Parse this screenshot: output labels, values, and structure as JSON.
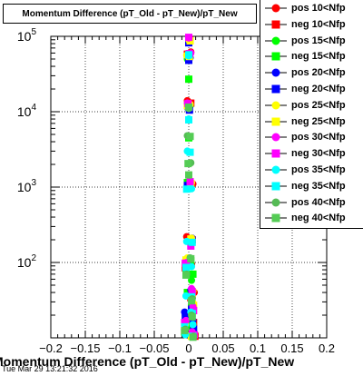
{
  "title": "Momentum Difference (pT_Old - pT_New)/pT_New",
  "timestamp": "Tue Mar 29 13:21:32 2016",
  "chart_data": {
    "type": "scatter",
    "title": "Momentum Difference (pT_Old - pT_New)/pT_New",
    "xlabel": "Momentum Difference (pT_Old - pT_New)/pT_New",
    "ylabel": "",
    "xlim": [
      -0.2,
      0.2
    ],
    "ylim": [
      10,
      100000
    ],
    "yscale": "log",
    "grid": true,
    "legend_position": "top-right",
    "x_ticks": [
      "−0.2",
      "−0.15",
      "−0.1",
      "−0.05",
      "0",
      "0.05",
      "0.1",
      "0.15",
      "0.2"
    ],
    "x_tick_values": [
      -0.2,
      -0.15,
      -0.1,
      -0.05,
      0,
      0.05,
      0.1,
      0.15,
      0.2
    ],
    "y_ticks": [
      {
        "value": 100,
        "base": "10",
        "exp": "2"
      },
      {
        "value": 1000,
        "base": "10",
        "exp": "3"
      },
      {
        "value": 10000,
        "base": "10",
        "exp": "4"
      },
      {
        "value": 100000,
        "base": "10",
        "exp": "5"
      }
    ],
    "series": [
      {
        "name": "pos 10<Nfp",
        "color": "#ff0000",
        "marker": "circle",
        "points": [
          [
            0.0,
            95000
          ],
          [
            0.003,
            62000
          ],
          [
            -0.002,
            14000
          ],
          [
            0.006,
            1100
          ],
          [
            -0.003,
            220
          ],
          [
            0.004,
            95
          ],
          [
            0.008,
            40
          ],
          [
            -0.004,
            18
          ],
          [
            0.006,
            13
          ],
          [
            0.009,
            11
          ]
        ]
      },
      {
        "name": "neg 10<Nfp",
        "color": "#ff0000",
        "marker": "square",
        "points": [
          [
            0.001,
            90000
          ],
          [
            -0.002,
            58000
          ],
          [
            0.003,
            13000
          ],
          [
            -0.001,
            1000
          ],
          [
            0.005,
            200
          ],
          [
            -0.005,
            85
          ],
          [
            0.003,
            34
          ],
          [
            0.007,
            16
          ],
          [
            -0.006,
            12
          ],
          [
            0.009,
            10.5
          ]
        ]
      },
      {
        "name": "pos 15<Nfp",
        "color": "#00ff00",
        "marker": "circle",
        "points": [
          [
            0.0,
            88000
          ],
          [
            -0.002,
            50000
          ],
          [
            0.002,
            12000
          ],
          [
            0.002,
            1200
          ],
          [
            -0.003,
            110
          ],
          [
            -0.004,
            78
          ],
          [
            0.004,
            58
          ],
          [
            0.005,
            30
          ],
          [
            -0.005,
            20
          ],
          [
            0.003,
            14
          ]
        ]
      },
      {
        "name": "neg 15<Nfp",
        "color": "#00ff00",
        "marker": "square",
        "points": [
          [
            0.0,
            85000
          ],
          [
            0.0,
            27000
          ],
          [
            0.0,
            4500
          ],
          [
            -0.002,
            1150
          ],
          [
            0.003,
            105
          ],
          [
            0.006,
            70
          ],
          [
            -0.002,
            40
          ],
          [
            0.004,
            25
          ],
          [
            0.005,
            16
          ],
          [
            -0.006,
            12
          ]
        ]
      },
      {
        "name": "pos 20<Nfp",
        "color": "#0000ff",
        "marker": "circle",
        "points": [
          [
            0.0,
            86000
          ],
          [
            0.002,
            52000
          ],
          [
            -0.001,
            11000
          ],
          [
            0.003,
            1100
          ],
          [
            0.005,
            210
          ],
          [
            -0.004,
            96
          ],
          [
            0.003,
            43
          ],
          [
            0.004,
            32
          ],
          [
            -0.006,
            22
          ],
          [
            0.006,
            17
          ]
        ]
      },
      {
        "name": "neg 20<Nfp",
        "color": "#0000ff",
        "marker": "square",
        "points": [
          [
            0.0,
            82000
          ],
          [
            0.0,
            48000
          ],
          [
            0.001,
            10500
          ],
          [
            -0.002,
            1050
          ],
          [
            0.004,
            190
          ],
          [
            -0.003,
            92
          ],
          [
            0.005,
            37
          ],
          [
            0.004,
            24
          ],
          [
            -0.005,
            19
          ],
          [
            0.007,
            13
          ]
        ]
      },
      {
        "name": "pos 25<Nfp",
        "color": "#ffff00",
        "marker": "circle",
        "points": [
          [
            0.0,
            90000
          ],
          [
            -0.003,
            56000
          ],
          [
            0.002,
            12500
          ],
          [
            0.004,
            1150
          ],
          [
            0.004,
            210
          ],
          [
            -0.002,
            115
          ],
          [
            0.006,
            42
          ],
          [
            0.006,
            29
          ],
          [
            -0.005,
            15
          ],
          [
            0.003,
            11
          ]
        ]
      },
      {
        "name": "neg 25<Nfp",
        "color": "#ffff00",
        "marker": "square",
        "points": [
          [
            0.002,
            87000
          ],
          [
            0.001,
            54000
          ],
          [
            -0.002,
            12000
          ],
          [
            0.003,
            1120
          ],
          [
            0.003,
            205
          ],
          [
            -0.004,
            108
          ],
          [
            0.005,
            38
          ],
          [
            0.007,
            27
          ],
          [
            -0.006,
            14
          ],
          [
            0.004,
            10.5
          ]
        ]
      },
      {
        "name": "pos 30<Nfp",
        "color": "#ff00ff",
        "marker": "circle",
        "points": [
          [
            0.0,
            95000
          ],
          [
            0.003,
            60000
          ],
          [
            -0.002,
            13000
          ],
          [
            0.002,
            1200
          ],
          [
            0.003,
            175
          ],
          [
            -0.003,
            100
          ],
          [
            0.004,
            45
          ],
          [
            0.006,
            26
          ],
          [
            -0.004,
            17
          ],
          [
            0.005,
            12
          ]
        ]
      },
      {
        "name": "neg 30<Nfp",
        "color": "#ff00ff",
        "marker": "square",
        "points": [
          [
            0.0,
            97000
          ],
          [
            0.001,
            59000
          ],
          [
            -0.001,
            12800
          ],
          [
            0.002,
            1180
          ],
          [
            0.003,
            165
          ],
          [
            -0.005,
            98
          ],
          [
            0.005,
            41
          ],
          [
            0.007,
            23
          ],
          [
            -0.006,
            16
          ],
          [
            0.008,
            11
          ]
        ]
      },
      {
        "name": "pos 35<Nfp",
        "color": "#00ffff",
        "marker": "circle",
        "points": [
          [
            0.0,
            55000
          ],
          [
            0.0,
            8000
          ],
          [
            -0.002,
            3000
          ],
          [
            0.004,
            950
          ],
          [
            -0.003,
            190
          ],
          [
            0.004,
            88
          ],
          [
            -0.004,
            36
          ],
          [
            0.003,
            22
          ],
          [
            0.006,
            15
          ],
          [
            -0.005,
            11
          ]
        ]
      },
      {
        "name": "neg 35<Nfp",
        "color": "#00ffff",
        "marker": "square",
        "points": [
          [
            0.0,
            57000
          ],
          [
            0.0,
            7800
          ],
          [
            0.002,
            2900
          ],
          [
            -0.003,
            940
          ],
          [
            0.005,
            185
          ],
          [
            -0.004,
            86
          ],
          [
            0.004,
            35
          ],
          [
            0.005,
            21
          ],
          [
            -0.006,
            14
          ],
          [
            0.006,
            10.5
          ]
        ]
      },
      {
        "name": "pos 40<Nfp",
        "color": "#55bb55",
        "marker": "circle",
        "points": [
          [
            0.0,
            11000
          ],
          [
            -0.002,
            4800
          ],
          [
            0.003,
            2100
          ],
          [
            0.0,
            1450
          ],
          [
            0.002,
            115
          ],
          [
            -0.003,
            70
          ],
          [
            0.005,
            33
          ],
          [
            0.004,
            20
          ],
          [
            -0.005,
            13
          ],
          [
            0.007,
            10.5
          ]
        ]
      },
      {
        "name": "neg 40<Nfp",
        "color": "#55cc55",
        "marker": "square",
        "points": [
          [
            0.0,
            11500
          ],
          [
            0.002,
            4700
          ],
          [
            -0.001,
            2050
          ],
          [
            0.0,
            1450
          ],
          [
            0.003,
            112
          ],
          [
            -0.004,
            68
          ],
          [
            0.004,
            31
          ],
          [
            0.005,
            19
          ],
          [
            -0.006,
            12.5
          ],
          [
            0.006,
            10.2
          ]
        ]
      }
    ]
  }
}
